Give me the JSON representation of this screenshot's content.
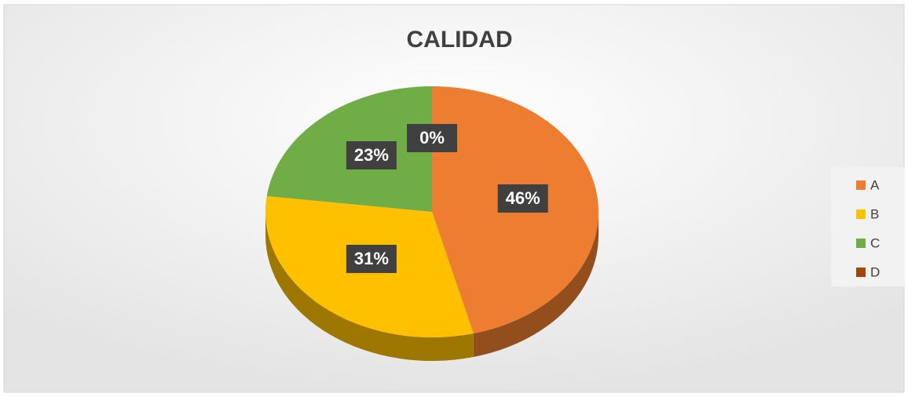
{
  "chart_data": {
    "type": "pie",
    "title": "CALIDAD",
    "categories": [
      "A",
      "B",
      "C",
      "D"
    ],
    "values": [
      46,
      31,
      23,
      0
    ],
    "value_labels": [
      "46%",
      "31%",
      "23%",
      "0%"
    ],
    "colors": [
      "#ED7D31",
      "#FFC000",
      "#70AD47",
      "#9E480E"
    ],
    "legend": "right"
  }
}
